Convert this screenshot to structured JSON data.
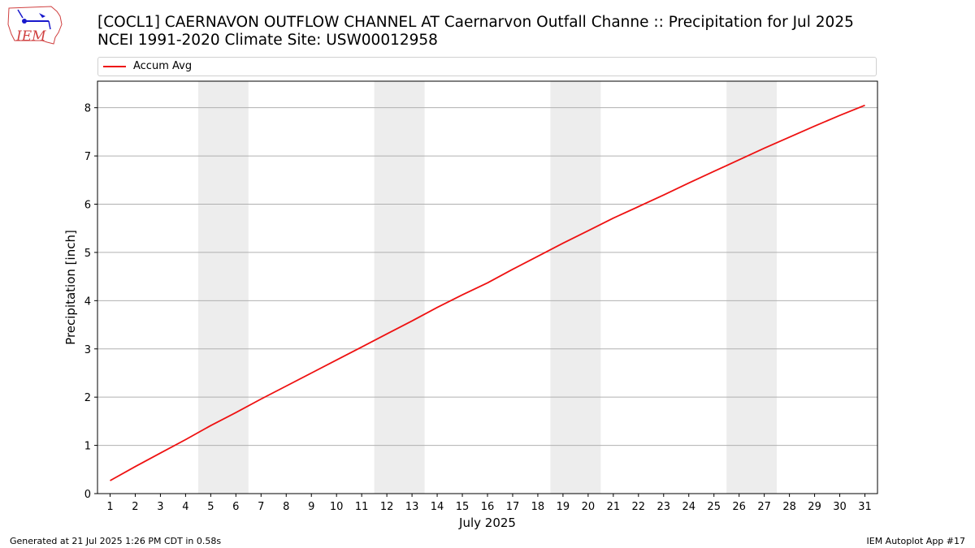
{
  "header": {
    "title_line1": "[COCL1] CAERNAVON OUTFLOW CHANNEL  AT Caernarvon Outfall Channe :: Precipitation for Jul 2025",
    "title_line2": "NCEI 1991-2020 Climate Site: USW00012958",
    "logo_text": "IEM"
  },
  "footer": {
    "generated": "Generated at 21 Jul 2025 1:26 PM CDT in 0.58s",
    "app": "IEM Autoplot App #17"
  },
  "colors": {
    "series": "#ee1111",
    "weekend_band": "#ededed",
    "grid": "#b0b0b0"
  },
  "chart_data": {
    "type": "line",
    "title": "[COCL1] CAERNAVON OUTFLOW CHANNEL  AT Caernarvon Outfall Channe :: Precipitation for Jul 2025",
    "subtitle": "NCEI 1991-2020 Climate Site: USW00012958",
    "xlabel": "July 2025",
    "ylabel": "Precipitation [inch]",
    "xlim": [
      0.5,
      31.5
    ],
    "ylim": [
      0,
      8.55
    ],
    "x_ticks": [
      1,
      2,
      3,
      4,
      5,
      6,
      7,
      8,
      9,
      10,
      11,
      12,
      13,
      14,
      15,
      16,
      17,
      18,
      19,
      20,
      21,
      22,
      23,
      24,
      25,
      26,
      27,
      28,
      29,
      30,
      31
    ],
    "y_ticks": [
      0,
      1,
      2,
      3,
      4,
      5,
      6,
      7,
      8
    ],
    "grid": "horizontal",
    "legend_position": "top",
    "shaded_x_ranges": [
      [
        4.5,
        6.5
      ],
      [
        11.5,
        13.5
      ],
      [
        18.5,
        20.5
      ],
      [
        25.5,
        27.5
      ]
    ],
    "series": [
      {
        "name": "Accum Avg",
        "x": [
          1,
          2,
          3,
          4,
          5,
          6,
          7,
          8,
          9,
          10,
          11,
          12,
          13,
          14,
          15,
          16,
          17,
          18,
          19,
          20,
          21,
          22,
          23,
          24,
          25,
          26,
          27,
          28,
          29,
          30,
          31
        ],
        "y": [
          0.27,
          0.56,
          0.84,
          1.12,
          1.41,
          1.68,
          1.96,
          2.23,
          2.5,
          2.77,
          3.04,
          3.31,
          3.58,
          3.86,
          4.12,
          4.37,
          4.65,
          4.92,
          5.19,
          5.45,
          5.71,
          5.95,
          6.19,
          6.44,
          6.68,
          6.92,
          7.16,
          7.39,
          7.62,
          7.84,
          8.05
        ]
      }
    ]
  }
}
